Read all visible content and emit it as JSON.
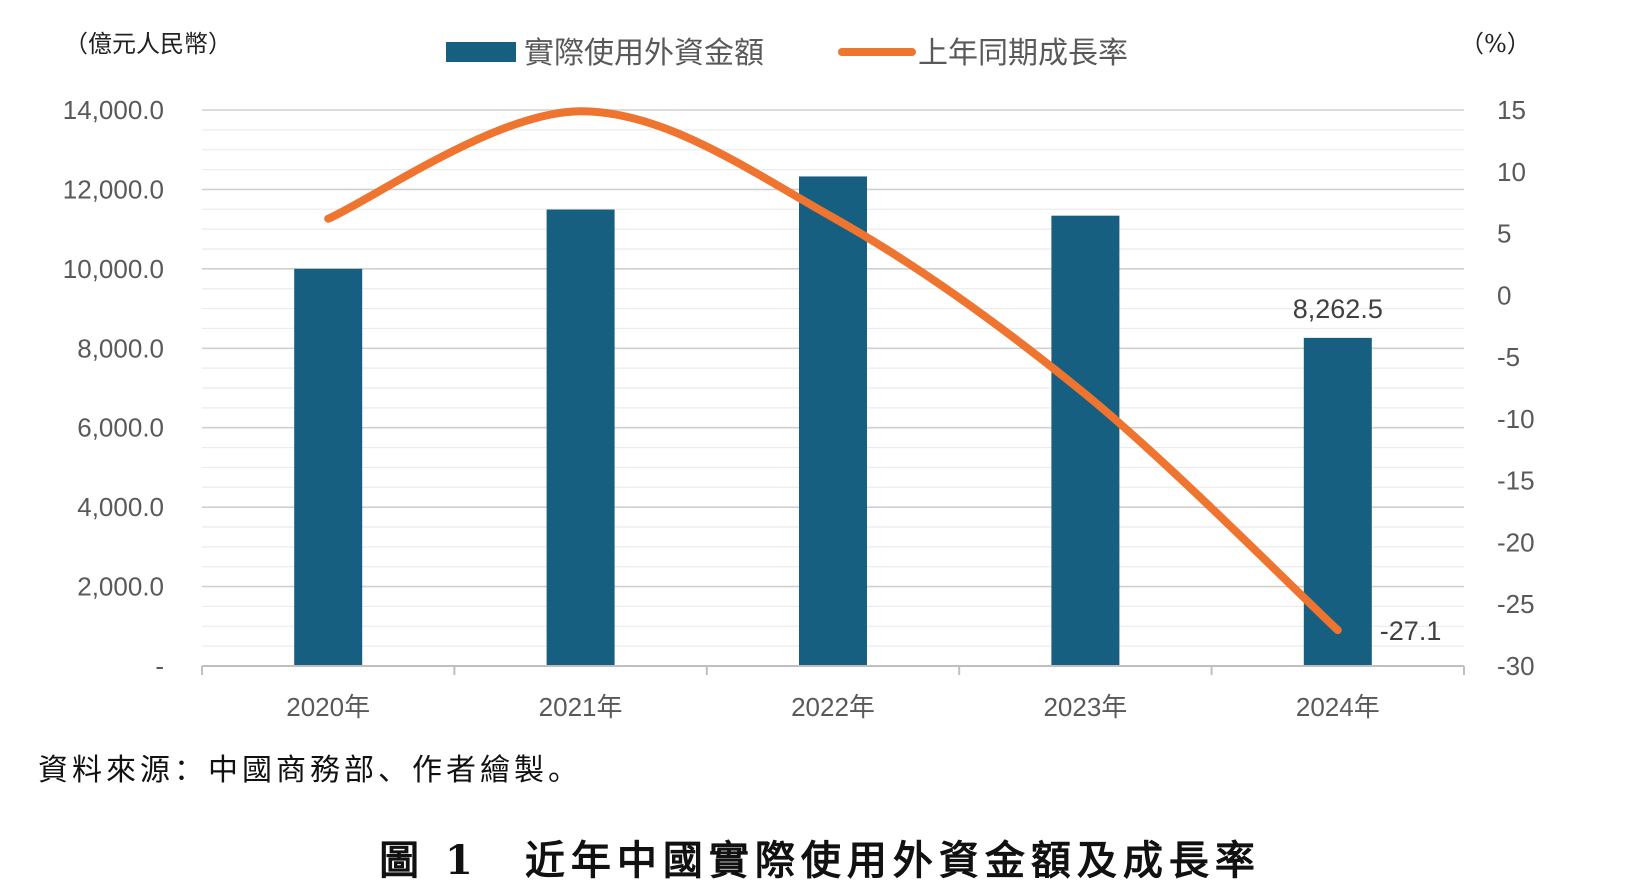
{
  "chart_data": {
    "type": "bar+line",
    "categories": [
      "2020年",
      "2021年",
      "2022年",
      "2023年",
      "2024年"
    ],
    "series": [
      {
        "name": "實際使用外資金額",
        "type": "bar",
        "axis": "left",
        "color": "#175F80",
        "values": [
          10000.0,
          11493.6,
          12326.8,
          11339.1,
          8262.5
        ]
      },
      {
        "name": "上年同期成長率",
        "type": "line",
        "axis": "right",
        "color": "#EE7430",
        "smooth": true,
        "values": [
          6.2,
          14.9,
          6.3,
          -8.0,
          -27.1
        ]
      }
    ],
    "left_axis": {
      "unit": "（億元人民幣）",
      "ylim": [
        0,
        14000
      ],
      "ticks": [
        0,
        2000,
        4000,
        6000,
        8000,
        10000,
        12000,
        14000
      ],
      "tick_labels": [
        "-",
        "2,000.0",
        "4,000.0",
        "6,000.0",
        "8,000.0",
        "10,000.0",
        "12,000.0",
        "14,000.0"
      ]
    },
    "right_axis": {
      "unit": "（%）",
      "ylim": [
        -30,
        15
      ],
      "ticks": [
        -30,
        -25,
        -20,
        -15,
        -10,
        -5,
        0,
        5,
        10,
        15
      ],
      "tick_labels": [
        "-30",
        "-25",
        "-20",
        "-15",
        "-10",
        "-5",
        "0",
        "5",
        "10",
        "15"
      ]
    },
    "data_labels": [
      {
        "series": "實際使用外資金額",
        "category": "2024年",
        "text": "8,262.5"
      },
      {
        "series": "上年同期成長率",
        "category": "2024年",
        "text": "-27.1"
      }
    ],
    "legend_position": "top-center",
    "grid": true
  },
  "source_note": "資料來源：中國商務部、作者繪製。",
  "figure_caption": "圖 1　近年中國實際使用外資金額及成長率"
}
